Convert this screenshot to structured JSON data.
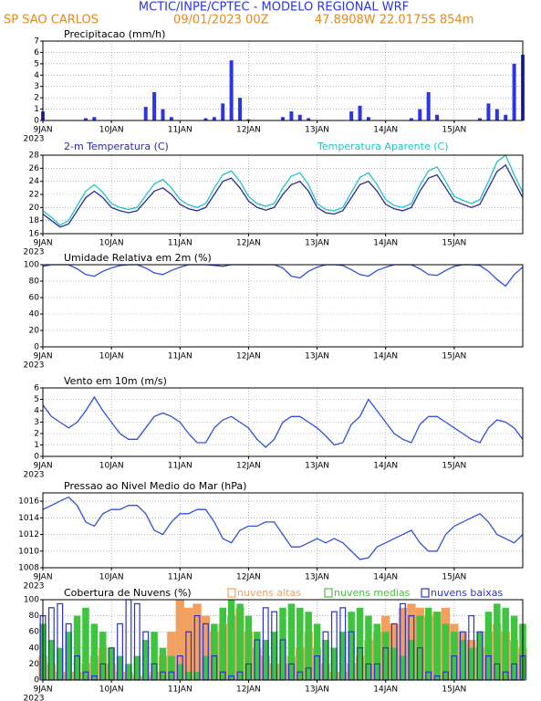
{
  "header": {
    "title": "MCTIC/INPE/CPTEC - MODELO REGIONAL WRF",
    "location": "SP SAO CARLOS",
    "run": "09/01/2023 00Z",
    "coords": "47.8908W 22.0175S 854m"
  },
  "chart_data": [
    {
      "type": "bar",
      "title": "Precipitacao (mm/h)",
      "year_label": "2023",
      "grid": true,
      "x": [
        0,
        3,
        6,
        9,
        12,
        15,
        18,
        21,
        24,
        27,
        30,
        33,
        36,
        39,
        42,
        45,
        48,
        51,
        54,
        57,
        60,
        63,
        66,
        69,
        72,
        75,
        78,
        81,
        84,
        87,
        90,
        93,
        96,
        99,
        102,
        105,
        108,
        111,
        114,
        117,
        120,
        123,
        126,
        129,
        132,
        135,
        138,
        141,
        144,
        147,
        150,
        153,
        156,
        159,
        162,
        165,
        168
      ],
      "xlim": [
        0,
        168
      ],
      "xticks": [
        {
          "value": 0,
          "label": "9JAN"
        },
        {
          "value": 24,
          "label": "10JAN"
        },
        {
          "value": 48,
          "label": "11JAN"
        },
        {
          "value": 72,
          "label": "12JAN"
        },
        {
          "value": 96,
          "label": "13JAN"
        },
        {
          "value": 120,
          "label": "14JAN"
        },
        {
          "value": 144,
          "label": "15JAN"
        }
      ],
      "ylim": [
        0,
        7
      ],
      "yticks": [
        0,
        1,
        2,
        3,
        4,
        5,
        6,
        7
      ],
      "series": [
        {
          "color": "#2b35e0",
          "values": [
            0.8,
            0,
            0,
            0,
            0,
            0.2,
            0.3,
            0,
            0,
            0,
            0,
            0,
            1.2,
            2.5,
            1.0,
            0.3,
            0,
            0,
            0,
            0.2,
            0.3,
            1.5,
            5.3,
            2.0,
            0.1,
            0,
            0,
            0,
            0.3,
            0.8,
            0.5,
            0.2,
            0,
            0,
            0,
            0,
            0.8,
            1.3,
            0.3,
            0,
            0,
            0,
            0,
            0.2,
            1.0,
            2.5,
            0.5,
            0,
            0,
            0,
            0,
            0.2,
            1.5,
            1.0,
            0.5,
            5.0,
            5.8
          ]
        }
      ]
    },
    {
      "type": "line",
      "year_label": "2023",
      "grid": true,
      "x": [
        0,
        3,
        6,
        9,
        12,
        15,
        18,
        21,
        24,
        27,
        30,
        33,
        36,
        39,
        42,
        45,
        48,
        51,
        54,
        57,
        60,
        63,
        66,
        69,
        72,
        75,
        78,
        81,
        84,
        87,
        90,
        93,
        96,
        99,
        102,
        105,
        108,
        111,
        114,
        117,
        120,
        123,
        126,
        129,
        132,
        135,
        138,
        141,
        144,
        147,
        150,
        153,
        156,
        159,
        162,
        165,
        168
      ],
      "xlim": [
        0,
        168
      ],
      "xticks": [
        {
          "value": 0,
          "label": "9JAN"
        },
        {
          "value": 24,
          "label": "10JAN"
        },
        {
          "value": 48,
          "label": "11JAN"
        },
        {
          "value": 72,
          "label": "12JAN"
        },
        {
          "value": 96,
          "label": "13JAN"
        },
        {
          "value": 120,
          "label": "14JAN"
        },
        {
          "value": 144,
          "label": "15JAN"
        }
      ],
      "ylim": [
        16,
        28
      ],
      "yticks": [
        16,
        18,
        20,
        22,
        24,
        26,
        28
      ],
      "series": [
        {
          "name": "2-m Temperatura (C)",
          "color": "#2a2a9a",
          "values": [
            19,
            18,
            17,
            17.5,
            19.5,
            21.5,
            22.5,
            21.5,
            20,
            19.5,
            19.2,
            19.5,
            21,
            22.5,
            23,
            22,
            20.5,
            19.8,
            19.5,
            20,
            22,
            24,
            24.5,
            23,
            21,
            20,
            19.6,
            20,
            22,
            23.5,
            24,
            22.5,
            20,
            19.2,
            19,
            19.5,
            21.5,
            23.5,
            24,
            22.5,
            20.5,
            19.8,
            19.5,
            20,
            22.5,
            24.5,
            25,
            23,
            21,
            20.5,
            20,
            20.5,
            23,
            25.5,
            26.5,
            24,
            21.5
          ]
        },
        {
          "name": "Temperatura Aparente (C)",
          "color": "#1fc4c4",
          "values": [
            19.5,
            18.5,
            17.3,
            18,
            20.3,
            22.5,
            23.5,
            22.3,
            20.6,
            20,
            19.7,
            20,
            21.8,
            23.6,
            24.3,
            23,
            21.2,
            20.4,
            20,
            20.6,
            23,
            25,
            25.6,
            24,
            21.7,
            20.6,
            20.2,
            20.6,
            23,
            24.8,
            25.3,
            23.5,
            20.6,
            19.7,
            19.5,
            20,
            22.3,
            24.6,
            25.3,
            23.5,
            21.2,
            20.3,
            20,
            20.6,
            23.4,
            25.6,
            26.2,
            24,
            21.7,
            21.1,
            20.6,
            21.2,
            24,
            27,
            28,
            25,
            22.3
          ]
        }
      ]
    },
    {
      "type": "line",
      "title": "Umidade Relativa em 2m (%)",
      "year_label": "2023",
      "grid": true,
      "x": [
        0,
        3,
        6,
        9,
        12,
        15,
        18,
        21,
        24,
        27,
        30,
        33,
        36,
        39,
        42,
        45,
        48,
        51,
        54,
        57,
        60,
        63,
        66,
        69,
        72,
        75,
        78,
        81,
        84,
        87,
        90,
        93,
        96,
        99,
        102,
        105,
        108,
        111,
        114,
        117,
        120,
        123,
        126,
        129,
        132,
        135,
        138,
        141,
        144,
        147,
        150,
        153,
        156,
        159,
        162,
        165,
        168
      ],
      "xlim": [
        0,
        168
      ],
      "xticks": [
        {
          "value": 0,
          "label": "9JAN"
        },
        {
          "value": 24,
          "label": "10JAN"
        },
        {
          "value": 48,
          "label": "11JAN"
        },
        {
          "value": 72,
          "label": "12JAN"
        },
        {
          "value": 96,
          "label": "13JAN"
        },
        {
          "value": 120,
          "label": "14JAN"
        },
        {
          "value": 144,
          "label": "15JAN"
        }
      ],
      "ylim": [
        0,
        100
      ],
      "yticks": [
        0,
        20,
        40,
        60,
        80,
        100
      ],
      "series": [
        {
          "color": "#3050e0",
          "values": [
            98,
            100,
            100,
            100,
            95,
            88,
            86,
            92,
            96,
            99,
            100,
            100,
            96,
            90,
            88,
            93,
            97,
            100,
            100,
            100,
            99,
            98,
            100,
            100,
            100,
            100,
            100,
            100,
            96,
            86,
            84,
            92,
            97,
            100,
            100,
            99,
            94,
            88,
            86,
            93,
            97,
            100,
            100,
            100,
            95,
            88,
            87,
            93,
            98,
            100,
            100,
            99,
            92,
            82,
            74,
            88,
            97
          ]
        }
      ]
    },
    {
      "type": "line",
      "title": "Vento em 10m (m/s)",
      "year_label": "2023",
      "grid": true,
      "x": [
        0,
        3,
        6,
        9,
        12,
        15,
        18,
        21,
        24,
        27,
        30,
        33,
        36,
        39,
        42,
        45,
        48,
        51,
        54,
        57,
        60,
        63,
        66,
        69,
        72,
        75,
        78,
        81,
        84,
        87,
        90,
        93,
        96,
        99,
        102,
        105,
        108,
        111,
        114,
        117,
        120,
        123,
        126,
        129,
        132,
        135,
        138,
        141,
        144,
        147,
        150,
        153,
        156,
        159,
        162,
        165,
        168
      ],
      "xlim": [
        0,
        168
      ],
      "xticks": [
        {
          "value": 0,
          "label": "9JAN"
        },
        {
          "value": 24,
          "label": "10JAN"
        },
        {
          "value": 48,
          "label": "11JAN"
        },
        {
          "value": 72,
          "label": "12JAN"
        },
        {
          "value": 96,
          "label": "13JAN"
        },
        {
          "value": 120,
          "label": "14JAN"
        },
        {
          "value": 144,
          "label": "15JAN"
        }
      ],
      "ylim": [
        0,
        6
      ],
      "yticks": [
        0,
        1,
        2,
        3,
        4,
        5,
        6
      ],
      "series": [
        {
          "color": "#3050e0",
          "values": [
            4.5,
            3.5,
            3,
            2.5,
            3,
            4,
            5.2,
            4,
            3,
            2,
            1.5,
            1.5,
            2.5,
            3.5,
            3.8,
            3.5,
            3,
            2,
            1.2,
            1.2,
            2.5,
            3.2,
            3.5,
            3,
            2.5,
            1.5,
            0.8,
            1.5,
            3,
            3.5,
            3.5,
            3,
            2.5,
            1.8,
            1,
            1.2,
            2.8,
            3.5,
            5,
            4,
            3,
            2,
            1.5,
            1.2,
            2.8,
            3.5,
            3.5,
            3,
            2.5,
            2,
            1.5,
            1.2,
            2.5,
            3.2,
            3,
            2.5,
            1.5
          ]
        }
      ]
    },
    {
      "type": "line",
      "title": "Pressao ao Nivel Medio do Mar (hPa)",
      "year_label": "2023",
      "grid": true,
      "x": [
        0,
        3,
        6,
        9,
        12,
        15,
        18,
        21,
        24,
        27,
        30,
        33,
        36,
        39,
        42,
        45,
        48,
        51,
        54,
        57,
        60,
        63,
        66,
        69,
        72,
        75,
        78,
        81,
        84,
        87,
        90,
        93,
        96,
        99,
        102,
        105,
        108,
        111,
        114,
        117,
        120,
        123,
        126,
        129,
        132,
        135,
        138,
        141,
        144,
        147,
        150,
        153,
        156,
        159,
        162,
        165,
        168
      ],
      "xlim": [
        0,
        168
      ],
      "xticks": [
        {
          "value": 0,
          "label": "9JAN"
        },
        {
          "value": 24,
          "label": "10JAN"
        },
        {
          "value": 48,
          "label": "11JAN"
        },
        {
          "value": 72,
          "label": "12JAN"
        },
        {
          "value": 96,
          "label": "13JAN"
        },
        {
          "value": 120,
          "label": "14JAN"
        },
        {
          "value": 144,
          "label": "15JAN"
        }
      ],
      "ylim": [
        1008,
        1017
      ],
      "yticks": [
        1008,
        1010,
        1012,
        1014,
        1016
      ],
      "series": [
        {
          "color": "#3050e0",
          "values": [
            1015,
            1015.5,
            1016,
            1016.5,
            1015.5,
            1013.5,
            1013,
            1014.5,
            1015,
            1015,
            1015.5,
            1015.5,
            1014.5,
            1012.5,
            1012,
            1013.5,
            1014.5,
            1014.5,
            1015,
            1015,
            1013.5,
            1011.5,
            1011,
            1012.5,
            1013,
            1013,
            1013.5,
            1013.5,
            1012,
            1010.5,
            1010.5,
            1011,
            1011.5,
            1011,
            1011.5,
            1011,
            1010,
            1009,
            1009.2,
            1010.5,
            1011,
            1011.5,
            1012,
            1012.5,
            1011,
            1010,
            1010,
            1012,
            1013,
            1013.5,
            1014,
            1014.5,
            1013.5,
            1012,
            1011.5,
            1011,
            1012
          ]
        }
      ]
    },
    {
      "type": "bar",
      "title": "Cobertura de Nuvens (%)",
      "year_label": "2023",
      "grid": true,
      "x": [
        0,
        3,
        6,
        9,
        12,
        15,
        18,
        21,
        24,
        27,
        30,
        33,
        36,
        39,
        42,
        45,
        48,
        51,
        54,
        57,
        60,
        63,
        66,
        69,
        72,
        75,
        78,
        81,
        84,
        87,
        90,
        93,
        96,
        99,
        102,
        105,
        108,
        111,
        114,
        117,
        120,
        123,
        126,
        129,
        132,
        135,
        138,
        141,
        144,
        147,
        150,
        153,
        156,
        159,
        162,
        165,
        168
      ],
      "xlim": [
        0,
        168
      ],
      "xticks": [
        {
          "value": 0,
          "label": "9JAN"
        },
        {
          "value": 24,
          "label": "10JAN"
        },
        {
          "value": 48,
          "label": "11JAN"
        },
        {
          "value": 72,
          "label": "12JAN"
        },
        {
          "value": 96,
          "label": "13JAN"
        },
        {
          "value": 120,
          "label": "14JAN"
        },
        {
          "value": 144,
          "label": "15JAN"
        }
      ],
      "ylim": [
        0,
        100
      ],
      "yticks": [
        0,
        20,
        40,
        60,
        80,
        100
      ],
      "series": [
        {
          "name": "nuvens altas",
          "color": "#f2a060",
          "values": [
            30,
            20,
            10,
            10,
            10,
            20,
            30,
            40,
            20,
            10,
            10,
            5,
            5,
            10,
            30,
            60,
            100,
            90,
            95,
            80,
            60,
            70,
            80,
            90,
            60,
            40,
            30,
            20,
            20,
            30,
            40,
            60,
            40,
            20,
            10,
            10,
            20,
            30,
            50,
            60,
            80,
            70,
            90,
            95,
            90,
            80,
            85,
            90,
            70,
            60,
            50,
            40,
            60,
            70,
            60,
            50,
            40
          ]
        },
        {
          "name": "nuvens medias",
          "color": "#3fc43f",
          "values": [
            70,
            50,
            40,
            60,
            80,
            90,
            70,
            60,
            40,
            30,
            20,
            30,
            50,
            60,
            40,
            30,
            20,
            10,
            10,
            30,
            70,
            90,
            100,
            95,
            80,
            60,
            50,
            60,
            90,
            95,
            90,
            85,
            70,
            50,
            40,
            60,
            85,
            90,
            80,
            70,
            60,
            40,
            30,
            50,
            80,
            90,
            85,
            70,
            60,
            50,
            40,
            60,
            85,
            95,
            90,
            80,
            70
          ]
        },
        {
          "name": "nuvens baixas",
          "color": "#2a35c8",
          "values": [
            80,
            90,
            95,
            70,
            30,
            10,
            5,
            20,
            40,
            70,
            100,
            95,
            60,
            20,
            10,
            10,
            30,
            60,
            80,
            70,
            30,
            10,
            5,
            10,
            20,
            50,
            90,
            85,
            50,
            20,
            10,
            15,
            30,
            60,
            85,
            90,
            60,
            40,
            20,
            20,
            40,
            70,
            95,
            80,
            40,
            10,
            5,
            10,
            30,
            60,
            80,
            60,
            30,
            20,
            10,
            20,
            30
          ]
        }
      ]
    }
  ]
}
